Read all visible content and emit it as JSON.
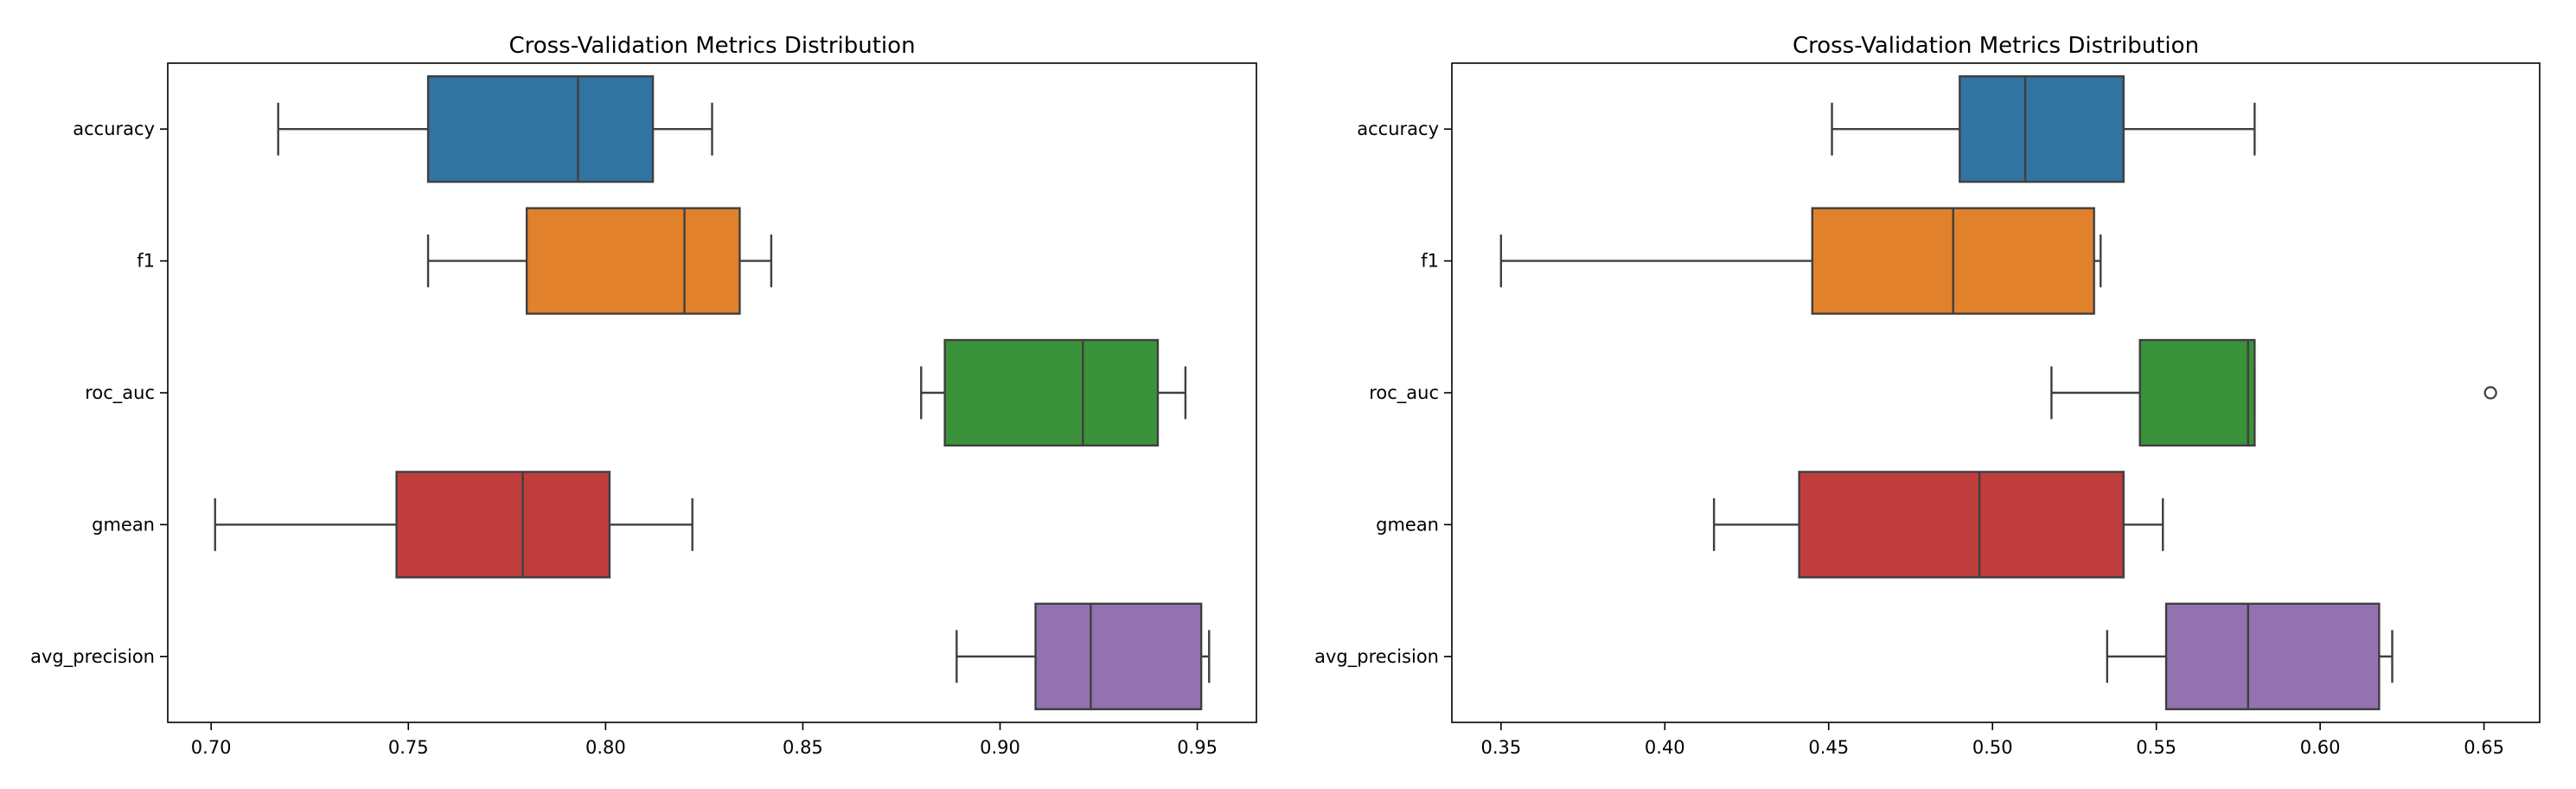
{
  "chart_data": [
    {
      "type": "box",
      "orientation": "horizontal",
      "title": "Cross-Validation Metrics Distribution",
      "xlabel": "",
      "ylabel": "",
      "xlim": [
        0.689,
        0.965
      ],
      "xticks": [
        "0.70",
        "0.75",
        "0.80",
        "0.85",
        "0.90",
        "0.95"
      ],
      "grid": false,
      "categories": [
        "accuracy",
        "f1",
        "roc_auc",
        "gmean",
        "avg_precision"
      ],
      "boxes": [
        {
          "category": "accuracy",
          "whisker_low": 0.717,
          "q1": 0.755,
          "median": 0.793,
          "q3": 0.812,
          "whisker_high": 0.827,
          "outliers": [],
          "color": "#3274a1"
        },
        {
          "category": "f1",
          "whisker_low": 0.755,
          "q1": 0.78,
          "median": 0.82,
          "q3": 0.834,
          "whisker_high": 0.842,
          "outliers": [],
          "color": "#e1812c"
        },
        {
          "category": "roc_auc",
          "whisker_low": 0.88,
          "q1": 0.886,
          "median": 0.921,
          "q3": 0.94,
          "whisker_high": 0.947,
          "outliers": [],
          "color": "#3a923a"
        },
        {
          "category": "gmean",
          "whisker_low": 0.701,
          "q1": 0.747,
          "median": 0.779,
          "q3": 0.801,
          "whisker_high": 0.822,
          "outliers": [],
          "color": "#c03d3e"
        },
        {
          "category": "avg_precision",
          "whisker_low": 0.889,
          "q1": 0.909,
          "median": 0.923,
          "q3": 0.951,
          "whisker_high": 0.953,
          "outliers": [],
          "color": "#9372b2"
        }
      ]
    },
    {
      "type": "box",
      "orientation": "horizontal",
      "title": "Cross-Validation Metrics Distribution",
      "xlabel": "",
      "ylabel": "",
      "xlim": [
        0.335,
        0.667
      ],
      "xticks": [
        "0.35",
        "0.40",
        "0.45",
        "0.50",
        "0.55",
        "0.60",
        "0.65"
      ],
      "grid": false,
      "categories": [
        "accuracy",
        "f1",
        "roc_auc",
        "gmean",
        "avg_precision"
      ],
      "boxes": [
        {
          "category": "accuracy",
          "whisker_low": 0.451,
          "q1": 0.49,
          "median": 0.51,
          "q3": 0.54,
          "whisker_high": 0.58,
          "outliers": [],
          "color": "#3274a1"
        },
        {
          "category": "f1",
          "whisker_low": 0.35,
          "q1": 0.445,
          "median": 0.488,
          "q3": 0.531,
          "whisker_high": 0.533,
          "outliers": [],
          "color": "#e1812c"
        },
        {
          "category": "roc_auc",
          "whisker_low": 0.518,
          "q1": 0.545,
          "median": 0.578,
          "q3": 0.58,
          "whisker_high": 0.58,
          "outliers": [
            0.652
          ],
          "color": "#3a923a"
        },
        {
          "category": "gmean",
          "whisker_low": 0.415,
          "q1": 0.441,
          "median": 0.496,
          "q3": 0.54,
          "whisker_high": 0.552,
          "outliers": [],
          "color": "#c03d3e"
        },
        {
          "category": "avg_precision",
          "whisker_low": 0.535,
          "q1": 0.553,
          "median": 0.578,
          "q3": 0.618,
          "whisker_high": 0.622,
          "outliers": [],
          "color": "#9372b2"
        }
      ]
    }
  ]
}
